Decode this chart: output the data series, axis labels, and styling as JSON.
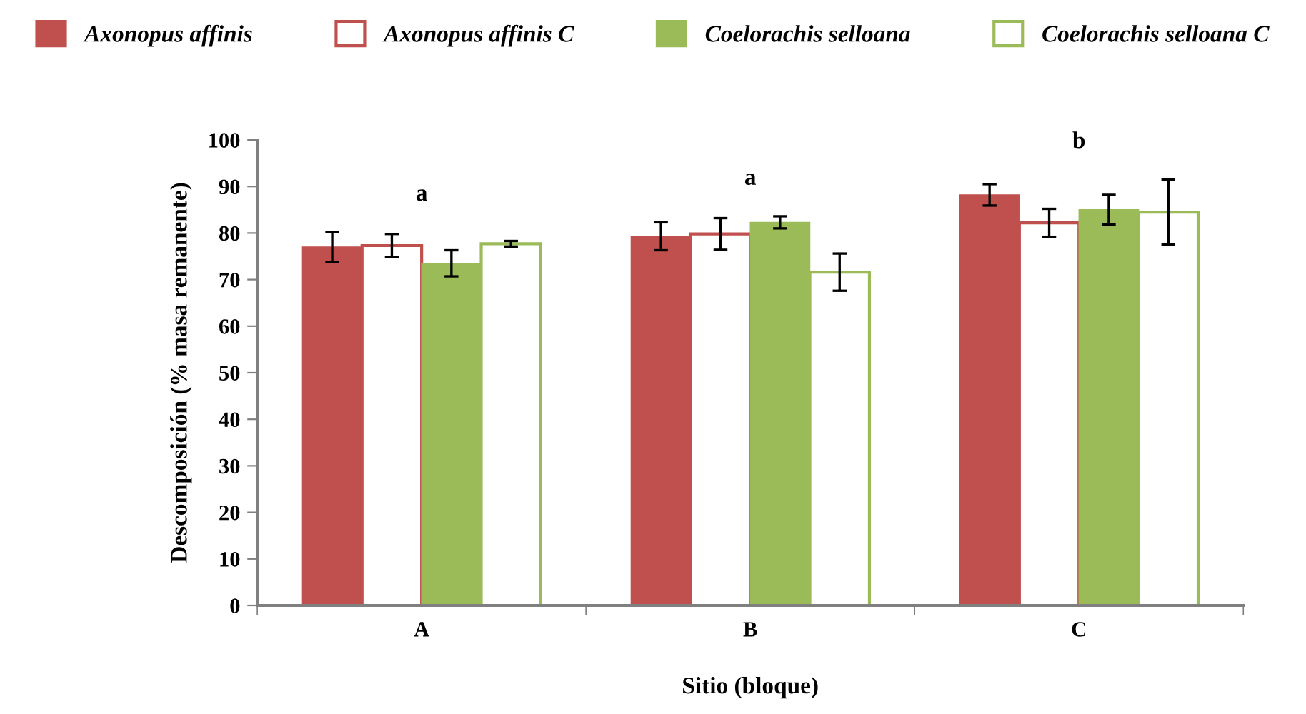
{
  "chart_data": {
    "type": "bar",
    "xlabel": "Sitio (bloque)",
    "ylabel": "Descomposición (% masa remanente)",
    "categories": [
      "A",
      "B",
      "C"
    ],
    "series": [
      {
        "name": "Axonopus affinis",
        "color": "#c0504d",
        "values": [
          77.0,
          79.3,
          88.2
        ],
        "errors": [
          3.2,
          3.0,
          2.3
        ]
      },
      {
        "name": "Axonopus affinis C",
        "color": "#c0504d",
        "values": [
          77.3,
          79.8,
          82.2
        ],
        "errors": [
          2.5,
          3.4,
          3.0
        ]
      },
      {
        "name": "Coelorachis selloana",
        "color": "#9bbb59",
        "values": [
          73.5,
          82.3,
          85.0
        ],
        "errors": [
          2.8,
          1.3,
          3.2
        ]
      },
      {
        "name": "Coelorachis selloana C",
        "color": "#9bbb59",
        "values": [
          77.7,
          71.6,
          84.5
        ],
        "errors": [
          0.6,
          4.0,
          7.0
        ]
      }
    ],
    "ylim": [
      0,
      100
    ],
    "yticks": [
      0,
      10,
      20,
      30,
      40,
      50,
      60,
      70,
      80,
      90,
      100
    ],
    "annotations": [
      "a",
      "a",
      "b"
    ],
    "legend": "top",
    "grid": false
  }
}
